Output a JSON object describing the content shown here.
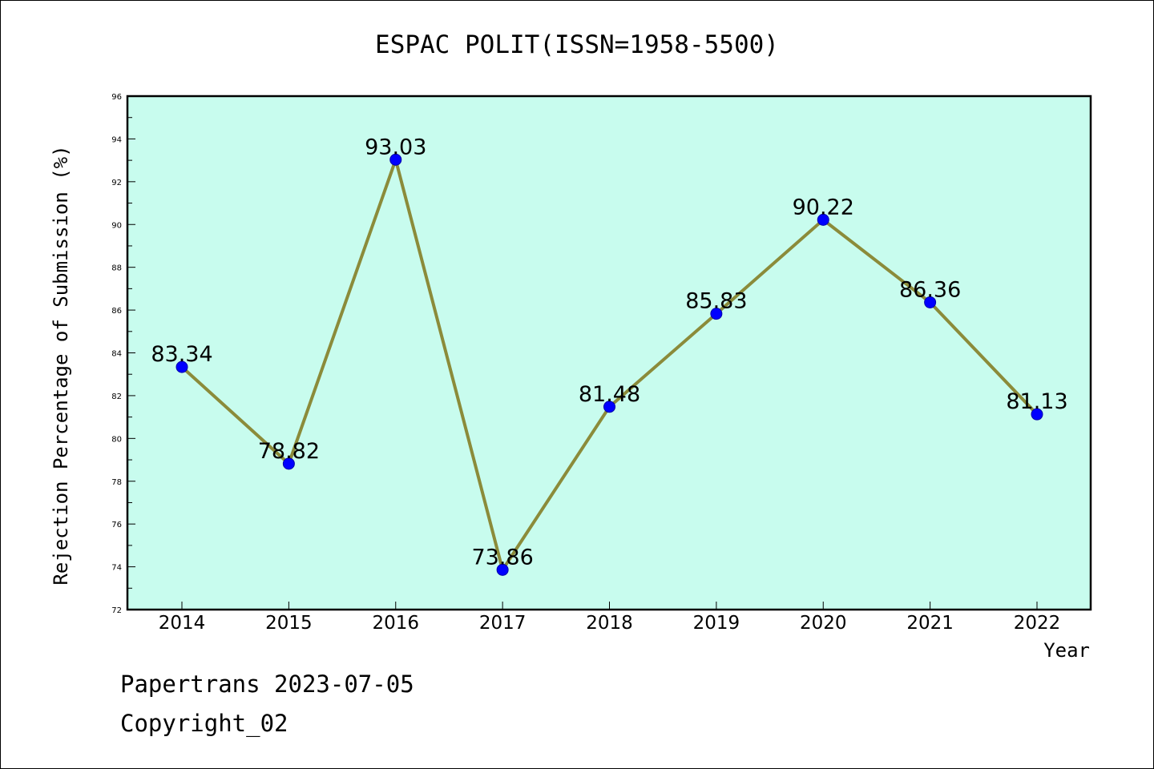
{
  "chart_data": {
    "type": "line",
    "title": "ESPAC POLIT(ISSN=1958-5500)",
    "xlabel": "Year",
    "ylabel": "Rejection Percentage of Submission (%)",
    "categories": [
      "2014",
      "2015",
      "2016",
      "2017",
      "2018",
      "2019",
      "2020",
      "2021",
      "2022"
    ],
    "values": [
      83.34,
      78.82,
      93.03,
      73.86,
      81.48,
      85.83,
      90.22,
      86.36,
      81.13
    ],
    "data_labels": [
      "83.34",
      "78.82",
      "93.03",
      "73.86",
      "81.48",
      "85.83",
      "90.22",
      "86.36",
      "81.13"
    ],
    "ylim": [
      72,
      96
    ],
    "yticks": [
      "72",
      "74",
      "76",
      "78",
      "80",
      "82",
      "84",
      "86",
      "88",
      "90",
      "92",
      "94",
      "96"
    ],
    "grid": false,
    "colors": {
      "plot_background": "#c8fcee",
      "line": "#8b8b3a",
      "marker": "#0000ff"
    }
  },
  "footer": {
    "line1": "Papertrans 2023-07-05",
    "line2": "Copyright_02"
  }
}
